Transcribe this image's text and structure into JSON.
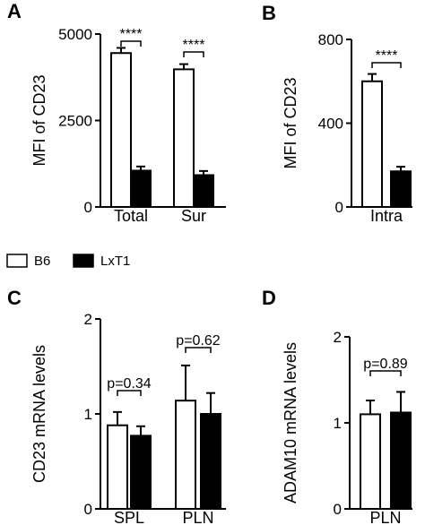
{
  "figure": {
    "legend": [
      {
        "label": "B6",
        "color": "#ffffff"
      },
      {
        "label": "LxT1",
        "color": "#000000"
      }
    ]
  },
  "chart_data": [
    {
      "panel": "A",
      "type": "bar",
      "ylabel": "MFI of CD23",
      "ylim": [
        0,
        5000
      ],
      "yticks": [
        0,
        2500,
        5000
      ],
      "categories": [
        "Total",
        "Sur"
      ],
      "series": [
        {
          "name": "B6",
          "color": "#ffffff",
          "values": [
            4450,
            3980
          ],
          "errors": [
            150,
            150
          ]
        },
        {
          "name": "LxT1",
          "color": "#000000",
          "values": [
            1050,
            920
          ],
          "errors": [
            120,
            120
          ]
        }
      ],
      "annotations": [
        {
          "category": "Total",
          "text": "****"
        },
        {
          "category": "Sur",
          "text": "****"
        }
      ]
    },
    {
      "panel": "B",
      "type": "bar",
      "ylabel": "MFI of CD23",
      "ylim": [
        0,
        800
      ],
      "yticks": [
        0,
        400,
        800
      ],
      "categories": [
        "Intra"
      ],
      "series": [
        {
          "name": "B6",
          "color": "#ffffff",
          "values": [
            600
          ],
          "errors": [
            35
          ]
        },
        {
          "name": "LxT1",
          "color": "#000000",
          "values": [
            170
          ],
          "errors": [
            22
          ]
        }
      ],
      "annotations": [
        {
          "category": "Intra",
          "text": "****"
        }
      ]
    },
    {
      "panel": "C",
      "type": "bar",
      "ylabel": "CD23 mRNA levels",
      "ylim": [
        0,
        2
      ],
      "yticks": [
        0,
        1,
        2
      ],
      "categories": [
        "SPL",
        "PLN"
      ],
      "series": [
        {
          "name": "B6",
          "color": "#ffffff",
          "values": [
            0.88,
            1.14
          ],
          "errors": [
            0.14,
            0.37
          ]
        },
        {
          "name": "LxT1",
          "color": "#000000",
          "values": [
            0.77,
            1.0
          ],
          "errors": [
            0.1,
            0.22
          ]
        }
      ],
      "annotations": [
        {
          "category": "SPL",
          "text": "p=0.34"
        },
        {
          "category": "PLN",
          "text": "p=0.62"
        }
      ]
    },
    {
      "panel": "D",
      "type": "bar",
      "ylabel": "ADAM10 mRNA levels",
      "ylim": [
        0,
        2
      ],
      "yticks": [
        0,
        1,
        2
      ],
      "categories": [
        "PLN"
      ],
      "series": [
        {
          "name": "B6",
          "color": "#ffffff",
          "values": [
            1.1
          ],
          "errors": [
            0.16
          ]
        },
        {
          "name": "LxT1",
          "color": "#000000",
          "values": [
            1.12
          ],
          "errors": [
            0.24
          ]
        }
      ],
      "annotations": [
        {
          "category": "PLN",
          "text": "p=0.89"
        }
      ]
    }
  ]
}
